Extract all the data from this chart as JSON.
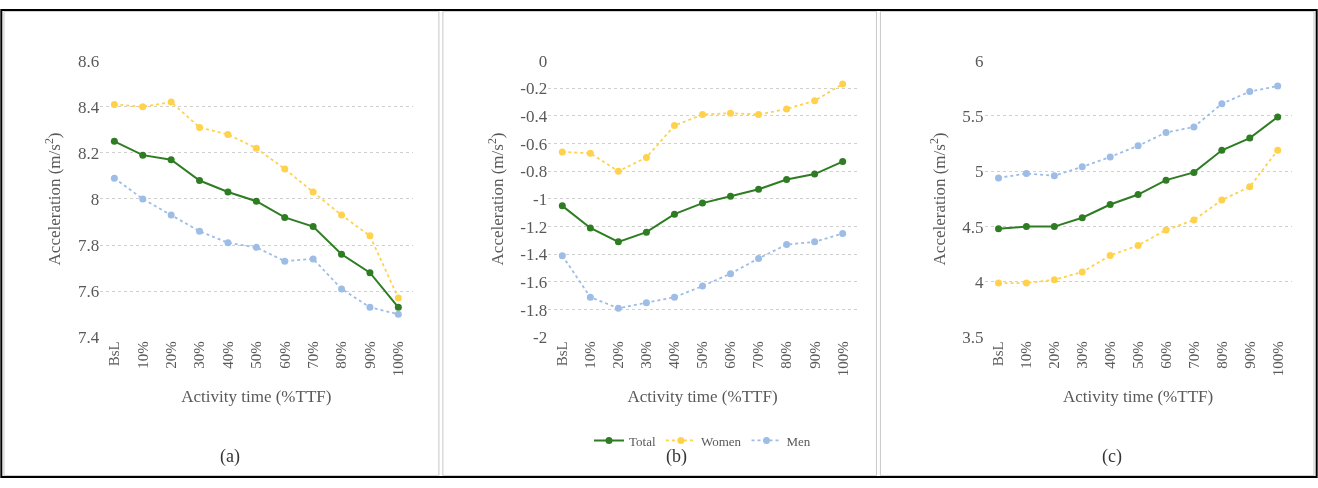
{
  "chart_data": [
    {
      "type": "line",
      "ylabel": "Acceleration (m/s$^{2}$)",
      "xlabel": "Activity time (%TTF)",
      "annotations": [
        "(a)"
      ],
      "categories": [
        "BsL",
        "10%",
        "20%",
        "30%",
        "40%",
        "50%",
        "60%",
        "70%",
        "80%",
        "90%",
        "100%"
      ],
      "ylim": [
        7.4,
        8.6
      ],
      "yticks": [
        7.4,
        7.6,
        7.8,
        8,
        8.2,
        8.4,
        8.6
      ],
      "grid": "y",
      "marker": "circle",
      "series": [
        {
          "color": "#2e7d23",
          "line_style": "solid",
          "values": [
            8.25,
            8.19,
            8.17,
            8.08,
            8.03,
            7.99,
            7.92,
            7.88,
            7.76,
            7.68,
            7.53
          ]
        },
        {
          "color": "#ffd24d",
          "line_style": "dotted",
          "values": [
            8.41,
            8.4,
            8.42,
            8.31,
            8.28,
            8.22,
            8.13,
            8.03,
            7.93,
            7.84,
            7.57
          ]
        },
        {
          "color": "#9dbde6",
          "line_style": "dotted",
          "values": [
            8.09,
            8.0,
            7.93,
            7.86,
            7.81,
            7.79,
            7.73,
            7.74,
            7.61,
            7.53,
            7.5
          ]
        }
      ]
    },
    {
      "type": "line",
      "ylabel": "Acceleration (m/s$^{2}$)",
      "xlabel": "Activity time (%TTF)",
      "annotations": [
        "(b)"
      ],
      "categories": [
        "BsL",
        "10%",
        "20%",
        "30%",
        "40%",
        "50%",
        "60%",
        "70%",
        "80%",
        "90%",
        "100%"
      ],
      "ylim": [
        -2,
        0
      ],
      "yticks": [
        -2,
        -1.8,
        -1.6,
        -1.4,
        -1.2,
        -1,
        -0.8,
        -0.6,
        -0.4,
        -0.2,
        0
      ],
      "grid": "y",
      "marker": "circle",
      "legend": "bottom",
      "series": [
        {
          "name": "Total",
          "color": "#2e7d23",
          "line_style": "solid",
          "values": [
            -1.05,
            -1.21,
            -1.31,
            -1.24,
            -1.11,
            -1.03,
            -0.98,
            -0.93,
            -0.86,
            -0.82,
            -0.73
          ]
        },
        {
          "name": "Women",
          "color": "#ffd24d",
          "line_style": "dotted",
          "values": [
            -0.66,
            -0.67,
            -0.8,
            -0.7,
            -0.47,
            -0.39,
            -0.38,
            -0.39,
            -0.35,
            -0.29,
            -0.17
          ]
        },
        {
          "name": "Men",
          "color": "#9dbde6",
          "line_style": "dotted",
          "values": [
            -1.41,
            -1.71,
            -1.79,
            -1.75,
            -1.71,
            -1.63,
            -1.54,
            -1.43,
            -1.33,
            -1.31,
            -1.25
          ]
        }
      ]
    },
    {
      "type": "line",
      "ylabel": "Acceleration (m/s$^{2}$)",
      "xlabel": "Activity time (%TTF)",
      "annotations": [
        "(c)"
      ],
      "categories": [
        "BsL",
        "10%",
        "20%",
        "30%",
        "40%",
        "50%",
        "60%",
        "70%",
        "80%",
        "90%",
        "100%"
      ],
      "ylim": [
        3.5,
        6
      ],
      "yticks": [
        3.5,
        4,
        4.5,
        5,
        5.5,
        6
      ],
      "grid": "y",
      "marker": "circle",
      "series": [
        {
          "color": "#2e7d23",
          "line_style": "solid",
          "values": [
            4.48,
            4.5,
            4.5,
            4.58,
            4.7,
            4.79,
            4.92,
            4.99,
            5.19,
            5.3,
            5.49
          ]
        },
        {
          "color": "#ffd24d",
          "line_style": "dotted",
          "values": [
            3.99,
            3.99,
            4.02,
            4.09,
            4.24,
            4.33,
            4.47,
            4.56,
            4.74,
            4.86,
            5.19
          ]
        },
        {
          "color": "#9dbde6",
          "line_style": "dotted",
          "values": [
            4.94,
            4.98,
            4.96,
            5.04,
            5.13,
            5.23,
            5.35,
            5.4,
            5.61,
            5.72,
            5.77
          ]
        }
      ]
    }
  ]
}
